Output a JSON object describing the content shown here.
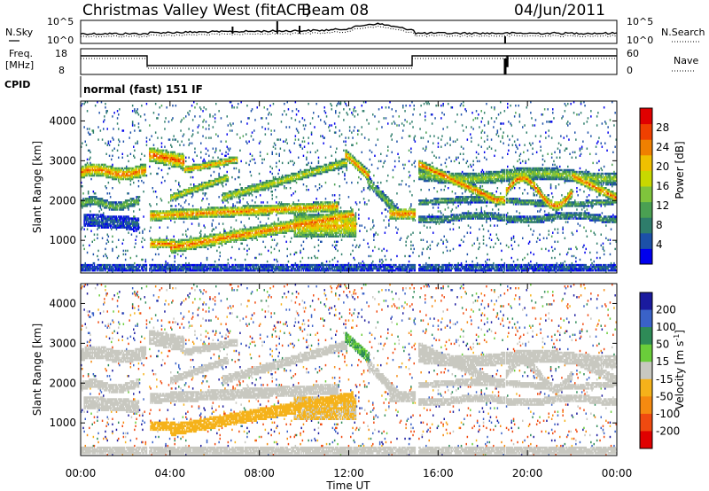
{
  "header": {
    "title": "Christmas Valley West (fitACF)",
    "beam": "Beam 08",
    "date": "04/Jun/2011"
  },
  "strip_labels": {
    "nsky": "N.Sky",
    "freq_line1": "Freq.",
    "freq_line2": "[MHz]",
    "cpid": "CPID",
    "nsearch": "N.Search",
    "nave": "Nave",
    "cpid_value": "normal (fast) 151 IF"
  },
  "strip_ticks": {
    "noise_left": [
      "10^5",
      "10^0"
    ],
    "noise_right": [
      "10^5",
      "10^0"
    ],
    "freq_left": [
      "18",
      "8"
    ],
    "nave_right": [
      "60",
      "0"
    ]
  },
  "chart_data": [
    {
      "type": "heatmap",
      "name": "power",
      "ylabel": "Slant Range [km]",
      "ylim": [
        180,
        4500
      ],
      "yticks": [
        "4000",
        "3000",
        "2000",
        "1000"
      ],
      "yvalues": [
        4000,
        3000,
        2000,
        1000
      ],
      "xlim": [
        0,
        24
      ],
      "colorbar": {
        "label": "Power [dB]",
        "ticks": [
          "28",
          "24",
          "20",
          "16",
          "12",
          "8",
          "4"
        ],
        "tickvalues": [
          28,
          24,
          20,
          16,
          12,
          8,
          4
        ],
        "range": [
          0,
          32
        ],
        "colors": [
          "#0000ee",
          "#1c50a8",
          "#2e7d6b",
          "#4aa052",
          "#7fc43c",
          "#c8d800",
          "#f0c000",
          "#f08000",
          "#f04000",
          "#e00000"
        ]
      }
    },
    {
      "type": "heatmap",
      "name": "velocity",
      "ylabel": "Slant Range [km]",
      "ylim": [
        180,
        4500
      ],
      "yticks": [
        "4000",
        "3000",
        "2000",
        "1000"
      ],
      "yvalues": [
        4000,
        3000,
        2000,
        1000
      ],
      "xlim": [
        0,
        24
      ],
      "xlabel": "Time UT",
      "xticks": [
        "00:00",
        "04:00",
        "08:00",
        "12:00",
        "16:00",
        "20:00",
        "00:00"
      ],
      "xvalues": [
        0,
        4,
        8,
        12,
        16,
        20,
        24
      ],
      "colorbar": {
        "label": "Velocity [m s^-1]",
        "ticks": [
          "200",
          "100",
          "50",
          "15",
          "-15",
          "-50",
          "-100",
          "-200"
        ],
        "colors": [
          "#1a1a9e",
          "#3a62c8",
          "#2e8b57",
          "#6acd3a",
          "#c8c8c0",
          "#f5b21a",
          "#f58a10",
          "#f04a10",
          "#e00000"
        ]
      }
    }
  ]
}
